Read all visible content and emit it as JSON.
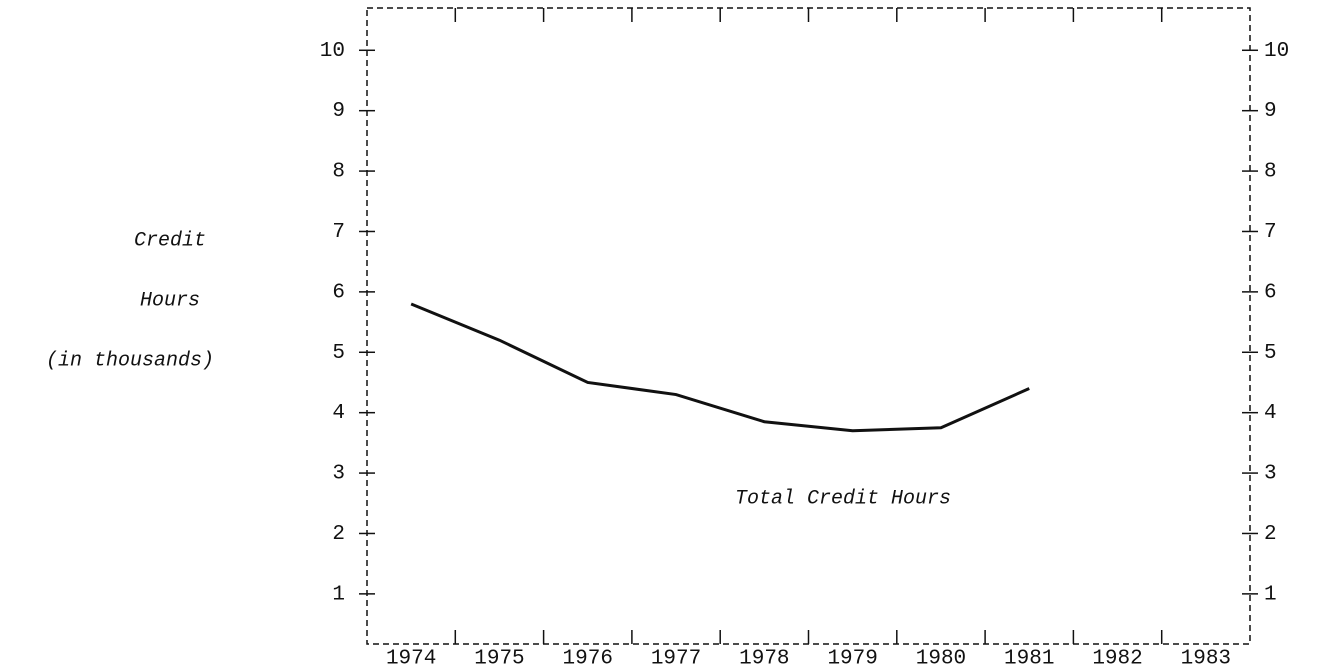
{
  "chart_data": {
    "type": "line",
    "ylabel": [
      "Credit",
      "Hours",
      "(in thousands)"
    ],
    "categories": [
      "1974",
      "1975",
      "1976",
      "1977",
      "1978",
      "1979",
      "1980",
      "1981",
      "1982",
      "1983"
    ],
    "series": [
      {
        "name": "Total Credit Hours",
        "color": "#111111",
        "values": [
          5.8,
          5.2,
          4.5,
          4.3,
          3.85,
          3.7,
          3.75,
          4.4,
          null,
          null
        ]
      }
    ],
    "ylim": [
      0.17,
      10.7
    ],
    "yticks": [
      1,
      2,
      3,
      4,
      5,
      6,
      7,
      8,
      9,
      10
    ],
    "grid": false
  }
}
